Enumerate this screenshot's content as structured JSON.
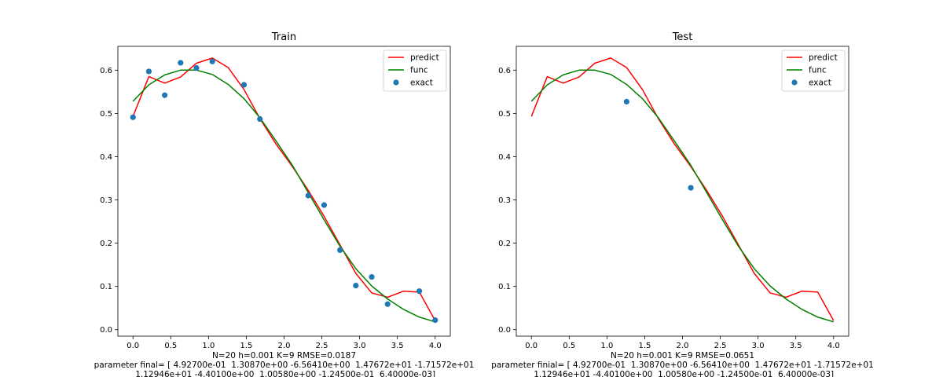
{
  "chart_data": [
    {
      "type": "line",
      "title": "Train",
      "xlabel": "",
      "ylabel": "",
      "xlim": [
        -0.2,
        4.2
      ],
      "ylim": [
        -0.015,
        0.655
      ],
      "xticks": [
        "0.0",
        "0.5",
        "1.0",
        "1.5",
        "2.0",
        "2.5",
        "3.0",
        "3.5",
        "4.0"
      ],
      "yticks": [
        "0.0",
        "0.1",
        "0.2",
        "0.3",
        "0.4",
        "0.5",
        "0.6"
      ],
      "grid": false,
      "legend_position": "top-right",
      "legend": [
        "predict",
        "func",
        "exact"
      ],
      "series": [
        {
          "name": "predict",
          "kind": "line",
          "color": "#ff0000",
          "x": [
            0.0,
            0.21,
            0.42,
            0.63,
            0.84,
            1.05,
            1.26,
            1.47,
            1.68,
            1.89,
            2.11,
            2.32,
            2.53,
            2.74,
            2.95,
            3.16,
            3.37,
            3.58,
            3.79,
            4.0
          ],
          "y": [
            0.493,
            0.585,
            0.57,
            0.584,
            0.616,
            0.628,
            0.606,
            0.555,
            0.488,
            0.43,
            0.377,
            0.322,
            0.262,
            0.196,
            0.13,
            0.085,
            0.075,
            0.089,
            0.087,
            0.021
          ]
        },
        {
          "name": "func",
          "kind": "line",
          "color": "#008000",
          "x": [
            0.0,
            0.21,
            0.42,
            0.63,
            0.84,
            1.05,
            1.26,
            1.47,
            1.68,
            1.89,
            2.11,
            2.32,
            2.53,
            2.74,
            2.95,
            3.16,
            3.37,
            3.58,
            3.79,
            4.0
          ],
          "y": [
            0.528,
            0.566,
            0.589,
            0.6,
            0.6,
            0.59,
            0.567,
            0.534,
            0.49,
            0.437,
            0.38,
            0.317,
            0.254,
            0.193,
            0.141,
            0.101,
            0.071,
            0.047,
            0.029,
            0.018
          ]
        },
        {
          "name": "exact",
          "kind": "scatter",
          "color": "#1f77b4",
          "x": [
            0.0,
            0.21,
            0.42,
            0.63,
            0.84,
            1.05,
            1.47,
            1.68,
            2.32,
            2.53,
            2.74,
            2.95,
            3.16,
            3.37,
            3.79,
            4.0
          ],
          "y": [
            0.491,
            0.597,
            0.542,
            0.617,
            0.605,
            0.62,
            0.566,
            0.487,
            0.31,
            0.288,
            0.184,
            0.102,
            0.122,
            0.059,
            0.089,
            0.022
          ]
        }
      ],
      "caption_lines": [
        "N=20 h=0.001 K=9 RMSE=0.0187",
        "parameter final= [ 4.92700e-01  1.30870e+00 -6.56410e+00  1.47672e+01 -1.71572e+01",
        " 1.12946e+01 -4.40100e+00  1.00580e+00 -1.24500e-01  6.40000e-03]"
      ]
    },
    {
      "type": "line",
      "title": "Test",
      "xlabel": "",
      "ylabel": "",
      "xlim": [
        -0.2,
        4.2
      ],
      "ylim": [
        -0.015,
        0.655
      ],
      "xticks": [
        "0.0",
        "0.5",
        "1.0",
        "1.5",
        "2.0",
        "2.5",
        "3.0",
        "3.5",
        "4.0"
      ],
      "yticks": [
        "0.0",
        "0.1",
        "0.2",
        "0.3",
        "0.4",
        "0.5",
        "0.6"
      ],
      "grid": false,
      "legend_position": "top-right",
      "legend": [
        "predict",
        "func",
        "exact"
      ],
      "series": [
        {
          "name": "predict",
          "kind": "line",
          "color": "#ff0000",
          "x": [
            0.0,
            0.21,
            0.42,
            0.63,
            0.84,
            1.05,
            1.26,
            1.47,
            1.68,
            1.89,
            2.11,
            2.32,
            2.53,
            2.74,
            2.95,
            3.16,
            3.37,
            3.58,
            3.79,
            4.0
          ],
          "y": [
            0.493,
            0.585,
            0.57,
            0.584,
            0.616,
            0.628,
            0.606,
            0.555,
            0.488,
            0.43,
            0.377,
            0.322,
            0.262,
            0.196,
            0.13,
            0.085,
            0.075,
            0.089,
            0.087,
            0.021
          ]
        },
        {
          "name": "func",
          "kind": "line",
          "color": "#008000",
          "x": [
            0.0,
            0.21,
            0.42,
            0.63,
            0.84,
            1.05,
            1.26,
            1.47,
            1.68,
            1.89,
            2.11,
            2.32,
            2.53,
            2.74,
            2.95,
            3.16,
            3.37,
            3.58,
            3.79,
            4.0
          ],
          "y": [
            0.528,
            0.566,
            0.589,
            0.6,
            0.6,
            0.59,
            0.567,
            0.534,
            0.49,
            0.437,
            0.38,
            0.317,
            0.254,
            0.193,
            0.141,
            0.101,
            0.071,
            0.047,
            0.029,
            0.018
          ]
        },
        {
          "name": "exact",
          "kind": "scatter",
          "color": "#1f77b4",
          "x": [
            1.26,
            2.11
          ],
          "y": [
            0.527,
            0.328
          ]
        }
      ],
      "caption_lines": [
        "N=20 h=0.001 K=9 RMSE=0.0651",
        "parameter finial= [ 4.92700e-01  1.30870e+00 -6.56410e+00  1.47672e+01 -1.71572e+01",
        " 1.12946e+01 -4.40100e+00  1.00580e+00 -1.24500e-01  6.40000e-03]"
      ]
    }
  ]
}
